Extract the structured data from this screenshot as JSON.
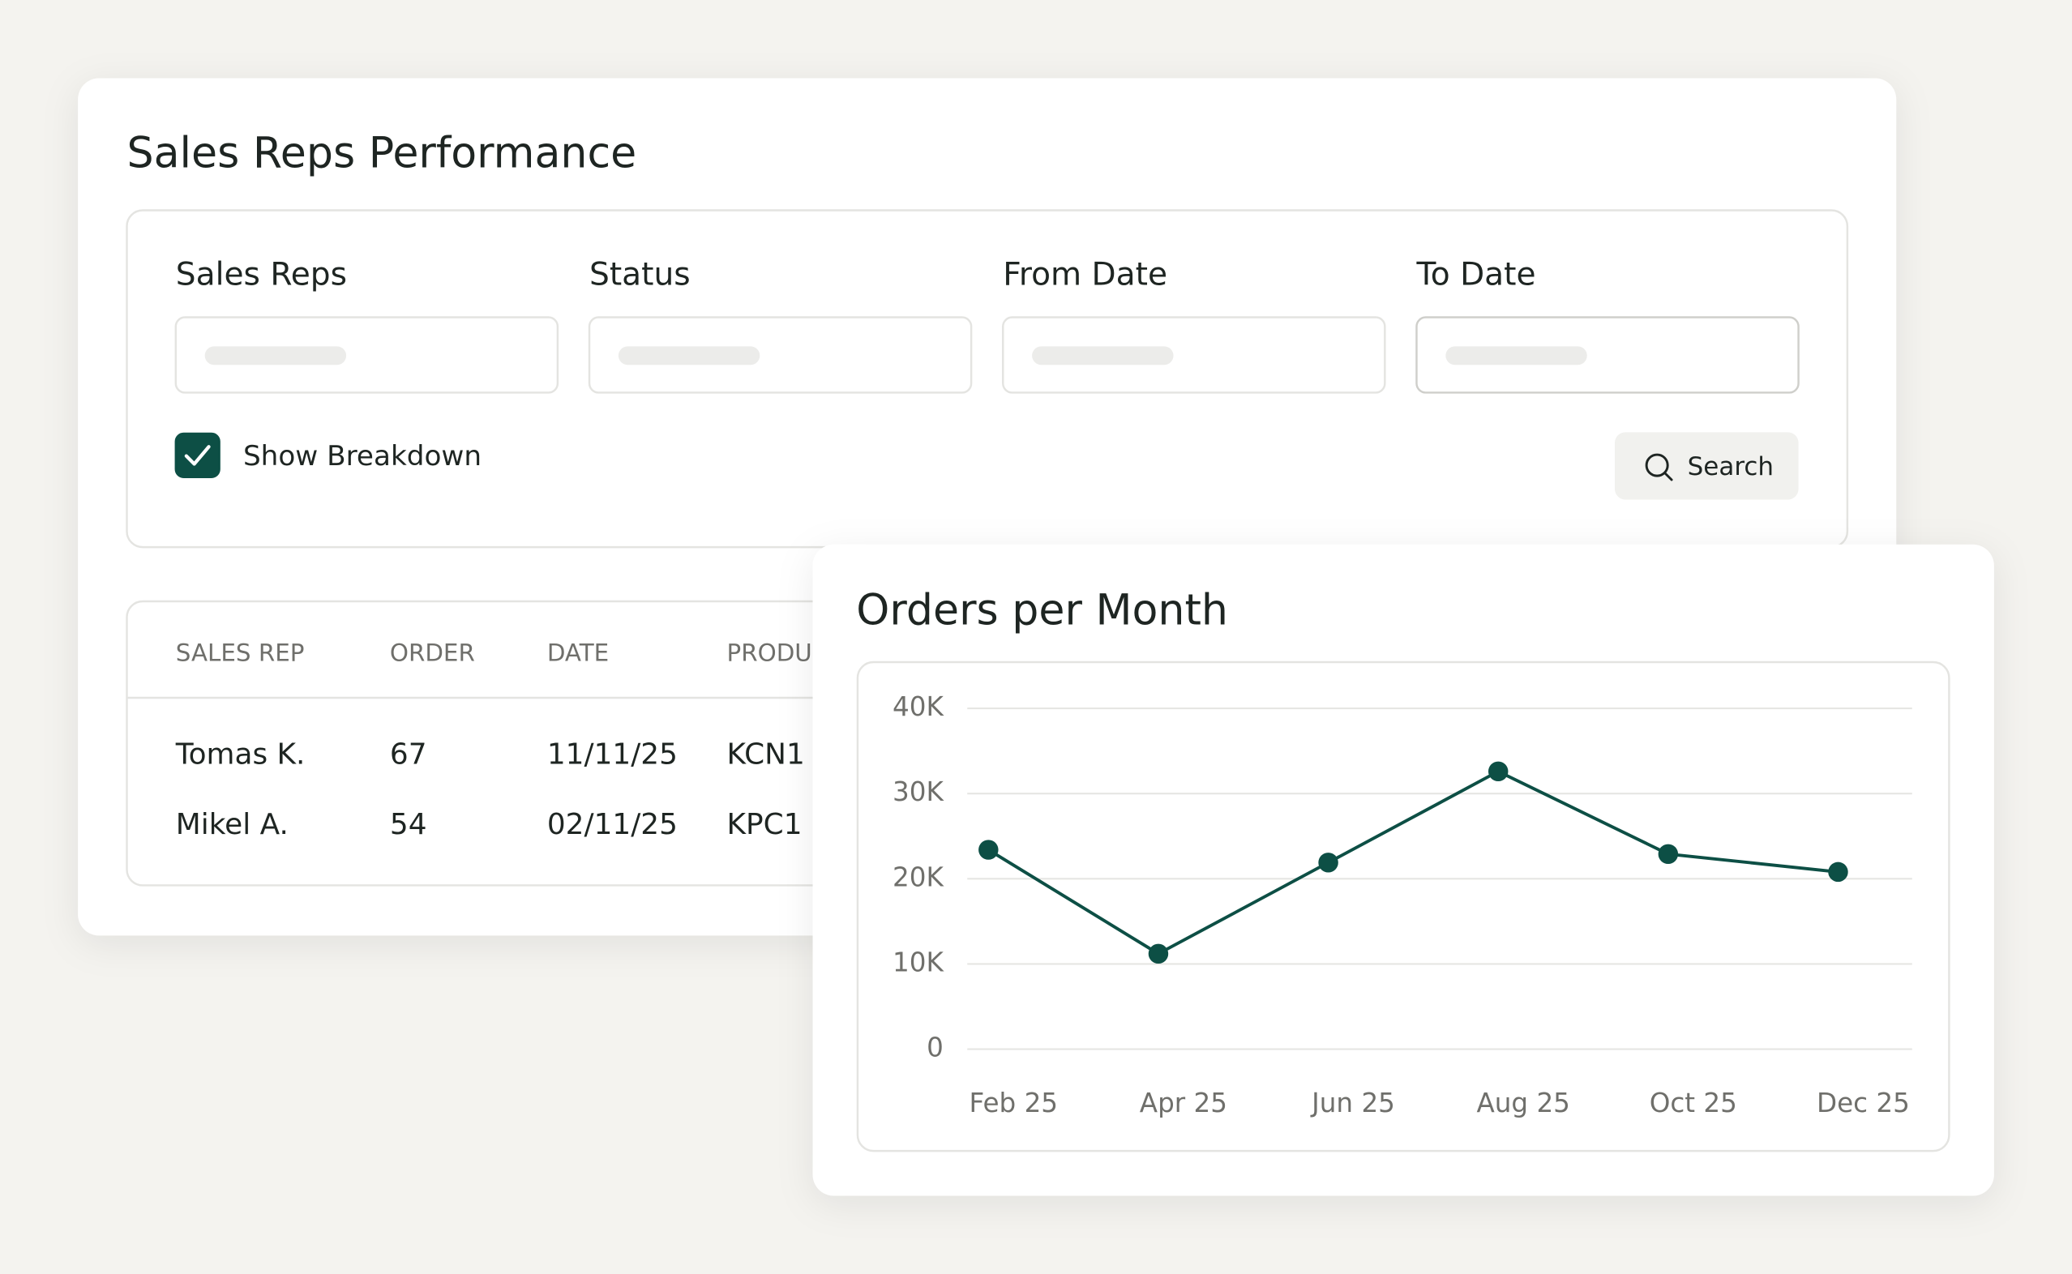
{
  "title": "Sales Reps Performance",
  "filters": [
    {
      "label": "Sales Reps"
    },
    {
      "label": "Status"
    },
    {
      "label": "From Date"
    },
    {
      "label": "To Date"
    }
  ],
  "checkbox": {
    "label": "Show Breakdown",
    "checked": true
  },
  "search_button": "Search",
  "table": {
    "columns": [
      "SALES REP",
      "ORDER",
      "DATE",
      "PRODU"
    ],
    "rows": [
      [
        "Tomas K.",
        "67",
        "11/11/25",
        "KCN1"
      ],
      [
        "Mikel A.",
        "54",
        "02/11/25",
        "KPC1"
      ]
    ]
  },
  "chart_data": {
    "type": "line",
    "title": "Orders per Month",
    "categories": [
      "Feb 25",
      "Apr 25",
      "Jun 25",
      "Aug 25",
      "Oct 25",
      "Dec 25"
    ],
    "values": [
      23400,
      11200,
      21900,
      32600,
      22900,
      20800
    ],
    "color": "#0d4f45",
    "ylim": [
      0,
      40000
    ],
    "yticks": [
      0,
      {
        "value": 10000,
        "label": "10K"
      },
      {
        "value": 20000,
        "label": "20K"
      },
      {
        "value": 30000,
        "label": "30K"
      },
      {
        "value": 40000,
        "label": "40K"
      }
    ],
    "grid": true
  }
}
